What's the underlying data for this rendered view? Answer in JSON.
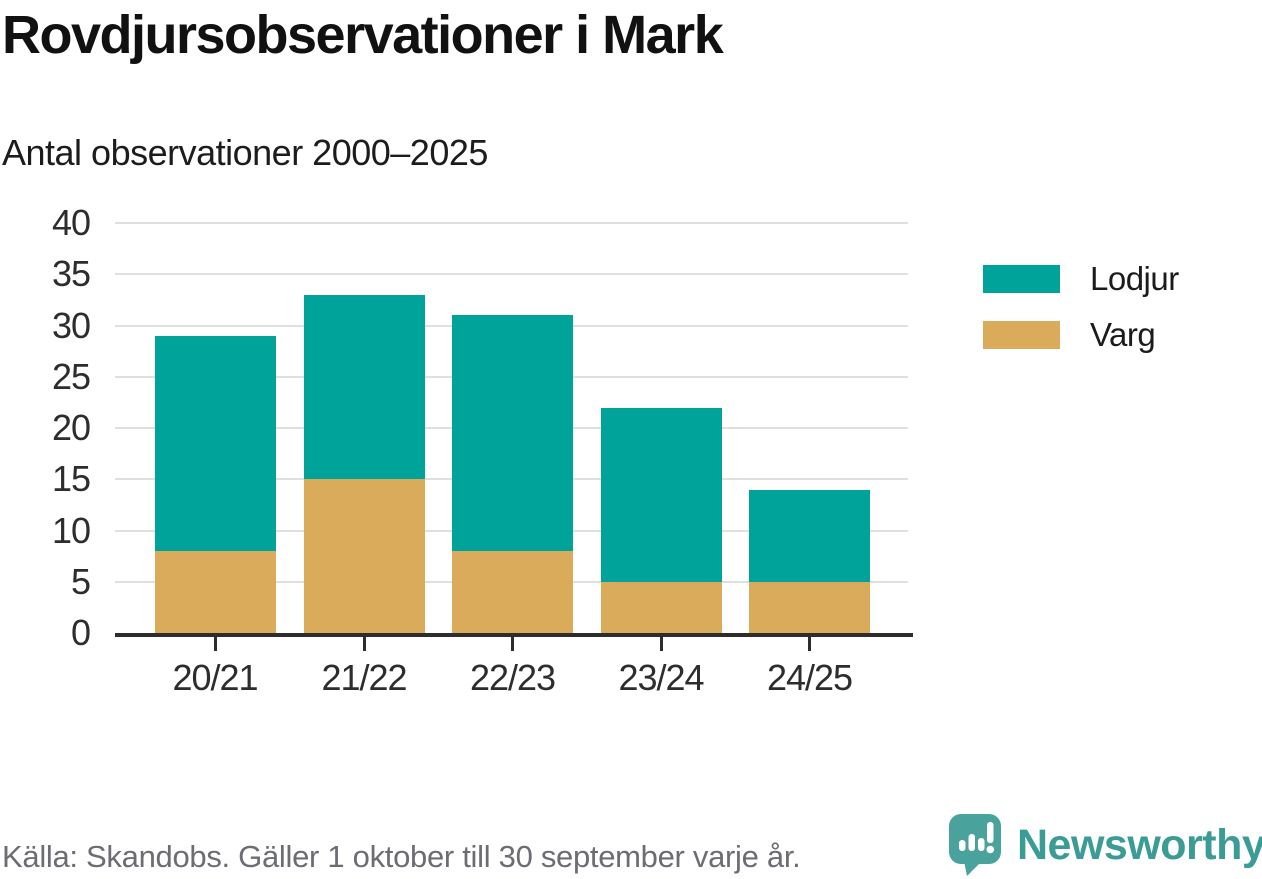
{
  "header": {
    "title": "Rovdjursobservationer i Mark",
    "subtitle": "Antal observationer 2000–2025"
  },
  "chart_data": {
    "type": "bar",
    "stacked": true,
    "title": "Rovdjursobservationer i Mark",
    "subtitle": "Antal observationer 2000–2025",
    "categories": [
      "20/21",
      "21/22",
      "22/23",
      "23/24",
      "24/25"
    ],
    "series": [
      {
        "name": "Varg",
        "color": "#d9ab5a",
        "values": [
          8,
          15,
          8,
          5,
          5
        ]
      },
      {
        "name": "Lodjur",
        "color": "#00a39a",
        "values": [
          21,
          18,
          23,
          17,
          9
        ]
      }
    ],
    "stack_totals": [
      29,
      33,
      31,
      22,
      14
    ],
    "xlabel": "",
    "ylabel": "",
    "ylim": [
      0,
      40
    ],
    "yticks": [
      0,
      5,
      10,
      15,
      20,
      25,
      30,
      35,
      40
    ],
    "grid": true,
    "legend_position": "right",
    "legend_order": [
      "Lodjur",
      "Varg"
    ]
  },
  "legend": {
    "items": [
      {
        "label": "Lodjur",
        "color": "#00a39a"
      },
      {
        "label": "Varg",
        "color": "#d9ab5a"
      }
    ]
  },
  "footer": {
    "source": "Källa: Skandobs. Gäller 1 oktober till 30 september varje år.",
    "brand": "Newsworthy"
  },
  "colors": {
    "lodjur": "#00a39a",
    "varg": "#d9ab5a",
    "axis": "#2d2d2d",
    "gridline": "#e0e0e0",
    "tick_label": "#2d2d2d",
    "footer_text": "#6c6c75",
    "brand_teal": "#3b9c96",
    "brand_icon": "#4aa29c",
    "background": "#ffffff"
  }
}
